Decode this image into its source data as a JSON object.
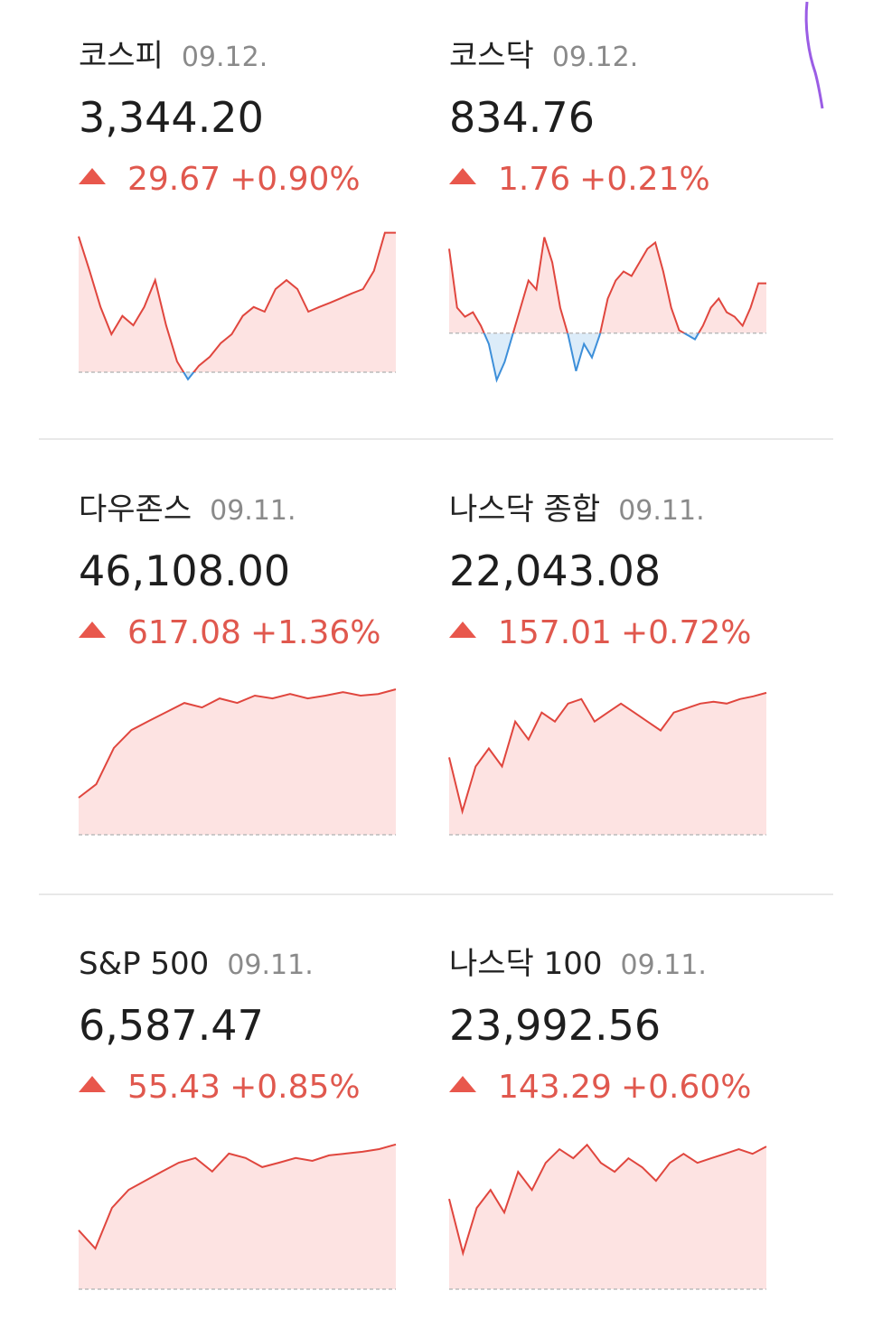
{
  "cards": [
    {
      "name": "코스피",
      "date": "09.12.",
      "value": "3,344.20",
      "change": "29.67",
      "percent": "+0.90%",
      "chart": {
        "type": "line",
        "color": "#e0463e",
        "down_color": "#3d8fd9",
        "fill": "#fde3e2",
        "down_fill": "#dcecf9",
        "baseline": 3314.53,
        "ylim": [
          3312.6,
          3344.5
        ],
        "values": [
          3343.4,
          3336.1,
          3328.4,
          3322.6,
          3326.5,
          3324.5,
          3328.4,
          3334.1,
          3324.5,
          3316.8,
          3313.0,
          3315.9,
          3317.8,
          3320.7,
          3322.6,
          3326.5,
          3328.4,
          3327.4,
          3332.2,
          3334.1,
          3332.2,
          3327.4,
          3328.4,
          3329.3,
          3330.3,
          3331.3,
          3332.2,
          3336.1,
          3344.2,
          3344.2
        ]
      }
    },
    {
      "name": "코스닥",
      "date": "09.12.",
      "value": "834.76",
      "change": "1.76",
      "percent": "+0.21%",
      "chart": {
        "type": "line",
        "color": "#e0463e",
        "down_color": "#3d8fd9",
        "fill": "#fde3e2",
        "down_fill": "#dcecf9",
        "baseline": 833.0,
        "ylim": [
          831.3,
          836.6
        ],
        "values": [
          835.98,
          833.9,
          833.58,
          833.74,
          833.26,
          832.62,
          831.34,
          831.98,
          832.94,
          833.9,
          834.86,
          834.54,
          836.39,
          835.5,
          833.9,
          832.94,
          831.66,
          832.62,
          832.14,
          832.94,
          834.22,
          834.86,
          835.18,
          835.02,
          835.5,
          835.98,
          836.2,
          835.18,
          833.9,
          833.1,
          832.94,
          832.78,
          833.26,
          833.9,
          834.22,
          833.74,
          833.58,
          833.26,
          833.9,
          834.76,
          834.76
        ]
      }
    },
    {
      "name": "다우존스",
      "date": "09.11.",
      "value": "46,108.00",
      "change": "617.08",
      "percent": "+1.36%",
      "chart": {
        "type": "line",
        "color": "#e0463e",
        "down_color": "#3d8fd9",
        "fill": "#fde3e2",
        "down_fill": "#dcecf9",
        "baseline": 45490.92,
        "ylim": [
          45490.92,
          46127
        ],
        "values": [
          45648,
          45705,
          45859,
          45935,
          45974,
          46012,
          46050,
          46031,
          46069,
          46050,
          46081,
          46069,
          46088,
          46069,
          46081,
          46096,
          46081,
          46088,
          46108
        ]
      }
    },
    {
      "name": "나스닥 종합",
      "date": "09.11.",
      "value": "22,043.08",
      "change": "157.01",
      "percent": "+0.72%",
      "chart": {
        "type": "line",
        "color": "#e0463e",
        "down_color": "#3d8fd9",
        "fill": "#fde3e2",
        "down_fill": "#dcecf9",
        "baseline": 21886.07,
        "ylim": [
          21886.07,
          22052
        ],
        "values": [
          21971.6,
          21911.9,
          21961.6,
          21981.5,
          21961.6,
          22011.3,
          21991.4,
          22021.3,
          22011.3,
          22031.2,
          22036.2,
          22011.3,
          22021.3,
          22031.2,
          22021.3,
          22011.3,
          22001.4,
          22021.3,
          22026.2,
          22031.2,
          22033.2,
          22031.2,
          22036.2,
          22039.2,
          22043.1
        ]
      }
    },
    {
      "name": "S&P 500",
      "date": "09.11.",
      "value": "6,587.47",
      "change": "55.43",
      "percent": "+0.85%",
      "chart": {
        "type": "line",
        "color": "#e0463e",
        "down_color": "#3d8fd9",
        "fill": "#fde3e2",
        "down_fill": "#dcecf9",
        "baseline": 6532.04,
        "ylim": [
          6532.04,
          6589.5
        ],
        "values": [
          6554.6,
          6547.6,
          6563.2,
          6570.1,
          6573.6,
          6577.1,
          6580.5,
          6582.3,
          6577.1,
          6584.0,
          6582.3,
          6578.8,
          6580.5,
          6582.3,
          6581.2,
          6583.3,
          6584.0,
          6584.7,
          6585.7,
          6587.5
        ]
      }
    },
    {
      "name": "나스닥 100",
      "date": "09.11.",
      "value": "23,992.56",
      "change": "143.29",
      "percent": "+0.60%",
      "chart": {
        "type": "line",
        "color": "#e0463e",
        "down_color": "#3d8fd9",
        "fill": "#fde3e2",
        "down_fill": "#dcecf9",
        "baseline": 23849.27,
        "ylim": [
          23849.27,
          24000
        ],
        "values": [
          23940.0,
          23885.5,
          23930.9,
          23949.0,
          23926.4,
          23967.2,
          23949.0,
          23976.2,
          23989.9,
          23980.8,
          23994.4,
          23976.2,
          23967.2,
          23980.8,
          23971.7,
          23958.1,
          23976.2,
          23985.3,
          23976.2,
          23980.8,
          23985.3,
          23989.9,
          23985.3,
          23992.6
        ]
      }
    }
  ]
}
